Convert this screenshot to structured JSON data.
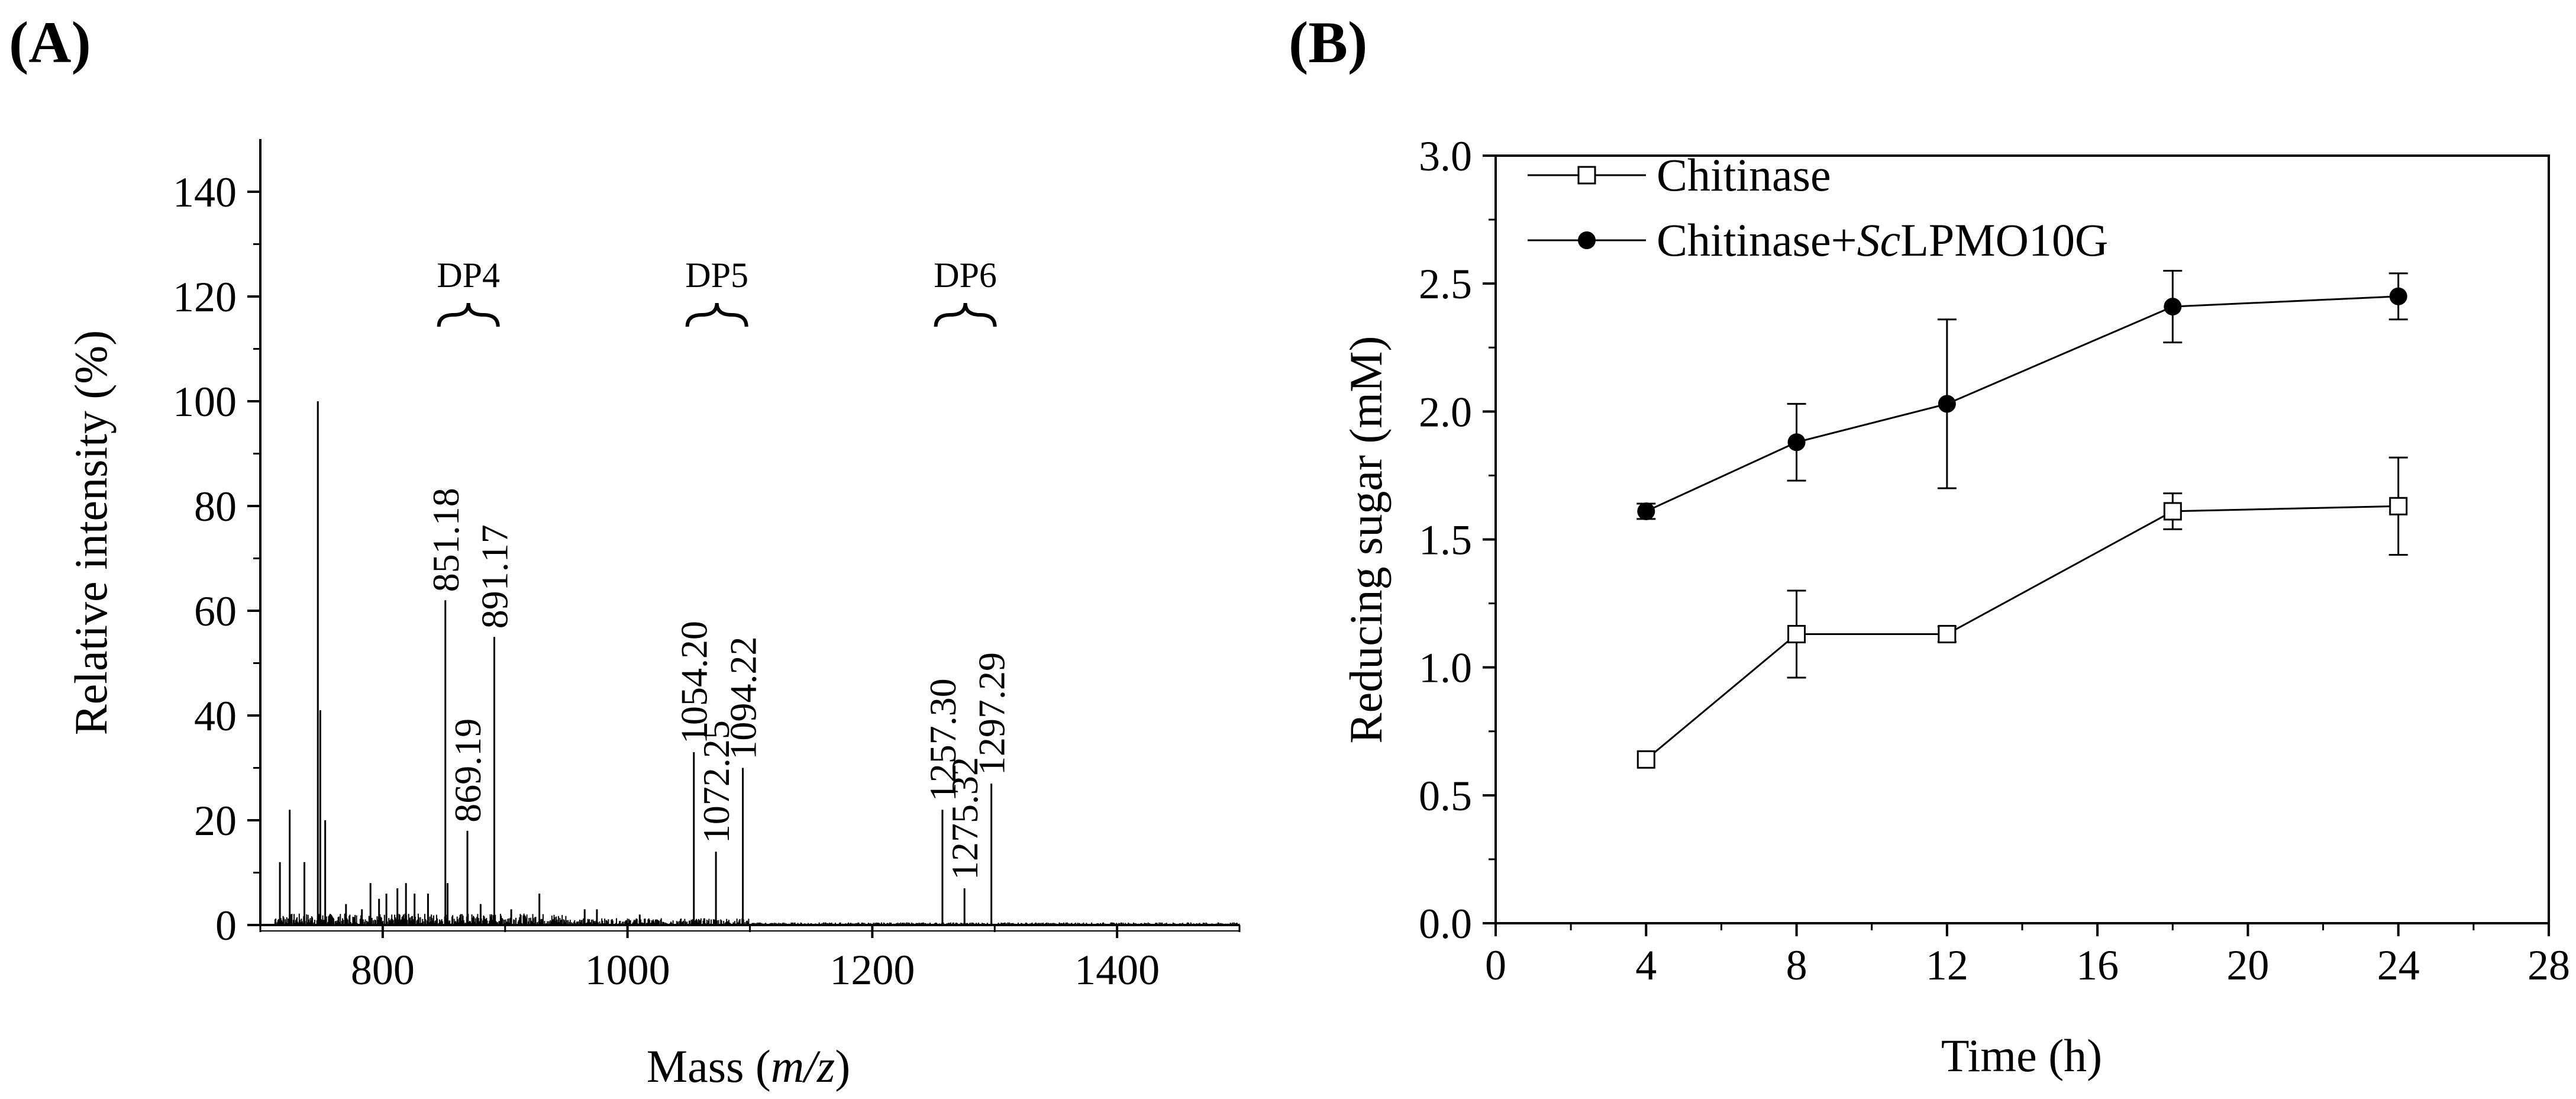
{
  "chart_data": [
    {
      "panel": "(A)",
      "type": "line",
      "title": "",
      "xlabel": "Mass (m/z)",
      "xlabel_parts": [
        "Mass (",
        "m/z",
        ")"
      ],
      "ylabel": "Relative intensity (%)",
      "xlim": [
        700,
        1500
      ],
      "ylim": [
        0,
        150
      ],
      "xticks": [
        800,
        1000,
        1200,
        1400
      ],
      "xtick_labels": [
        "800",
        "1000",
        "1200",
        "1400"
      ],
      "yticks": [
        0,
        20,
        40,
        60,
        80,
        100,
        120,
        140
      ],
      "ytick_labels": [
        "0",
        "20",
        "40",
        "60",
        "80",
        "100",
        "120",
        "140"
      ],
      "peaks": [
        {
          "mz": 716,
          "intensity": 12
        },
        {
          "mz": 724,
          "intensity": 22
        },
        {
          "mz": 736,
          "intensity": 12
        },
        {
          "mz": 747,
          "intensity": 100
        },
        {
          "mz": 749,
          "intensity": 41
        },
        {
          "mz": 753,
          "intensity": 20
        },
        {
          "mz": 770,
          "intensity": 4
        },
        {
          "mz": 783,
          "intensity": 3
        },
        {
          "mz": 790,
          "intensity": 8
        },
        {
          "mz": 797,
          "intensity": 5
        },
        {
          "mz": 803,
          "intensity": 6
        },
        {
          "mz": 812,
          "intensity": 7
        },
        {
          "mz": 819,
          "intensity": 8
        },
        {
          "mz": 826,
          "intensity": 6
        },
        {
          "mz": 837,
          "intensity": 6
        },
        {
          "mz": 851.18,
          "intensity": 62,
          "label": "851.18"
        },
        {
          "mz": 853,
          "intensity": 8
        },
        {
          "mz": 869.19,
          "intensity": 18,
          "label": "869.19"
        },
        {
          "mz": 880,
          "intensity": 4
        },
        {
          "mz": 891.17,
          "intensity": 55,
          "label": "891.17"
        },
        {
          "mz": 905,
          "intensity": 3
        },
        {
          "mz": 928,
          "intensity": 6
        },
        {
          "mz": 965,
          "intensity": 3
        },
        {
          "mz": 975,
          "intensity": 3
        },
        {
          "mz": 1010,
          "intensity": 2
        },
        {
          "mz": 1054.2,
          "intensity": 33,
          "label": "1054.20"
        },
        {
          "mz": 1072.25,
          "intensity": 14,
          "label": "1072.25"
        },
        {
          "mz": 1094.22,
          "intensity": 30,
          "label": "1094.22"
        },
        {
          "mz": 1257.3,
          "intensity": 22,
          "label": "1257.30"
        },
        {
          "mz": 1275.32,
          "intensity": 7,
          "label": "1275.32"
        },
        {
          "mz": 1297.29,
          "intensity": 27,
          "label": "1297.29"
        }
      ],
      "annotations": [
        {
          "text": "DP4",
          "mz": 870
        },
        {
          "text": "DP5",
          "mz": 1073
        },
        {
          "text": "DP6",
          "mz": 1276
        }
      ]
    },
    {
      "panel": "(B)",
      "type": "line",
      "title": "",
      "xlabel": "Time (h)",
      "ylabel": "Reducing sugar (mM)",
      "xlim": [
        0,
        28
      ],
      "ylim": [
        0,
        3.0
      ],
      "xticks": [
        0,
        4,
        8,
        12,
        16,
        20,
        24,
        28
      ],
      "xtick_labels": [
        "0",
        "4",
        "8",
        "12",
        "16",
        "20",
        "24",
        "28"
      ],
      "yticks": [
        0,
        0.5,
        1.0,
        1.5,
        2.0,
        2.5,
        3.0
      ],
      "ytick_labels": [
        "0.0",
        "0.5",
        "1.0",
        "1.5",
        "2.0",
        "2.5",
        "3.0"
      ],
      "legend_position": "top-left",
      "series": [
        {
          "name": "Chitinase",
          "name_parts": [
            "Chitinase"
          ],
          "marker": "open-square",
          "x": [
            4,
            8,
            12,
            18,
            24
          ],
          "y": [
            0.64,
            1.13,
            1.13,
            1.61,
            1.63
          ],
          "err": [
            0.0,
            0.17,
            0.03,
            0.07,
            0.19
          ]
        },
        {
          "name": "Chitinase+ScLPMO10G",
          "name_parts": [
            "Chitinase+",
            "Sc",
            "LPMO10G"
          ],
          "marker": "filled-circle",
          "x": [
            4,
            8,
            12,
            18,
            24
          ],
          "y": [
            1.61,
            1.88,
            2.03,
            2.41,
            2.45
          ],
          "err": [
            0.03,
            0.15,
            0.33,
            0.14,
            0.09
          ]
        }
      ]
    }
  ]
}
